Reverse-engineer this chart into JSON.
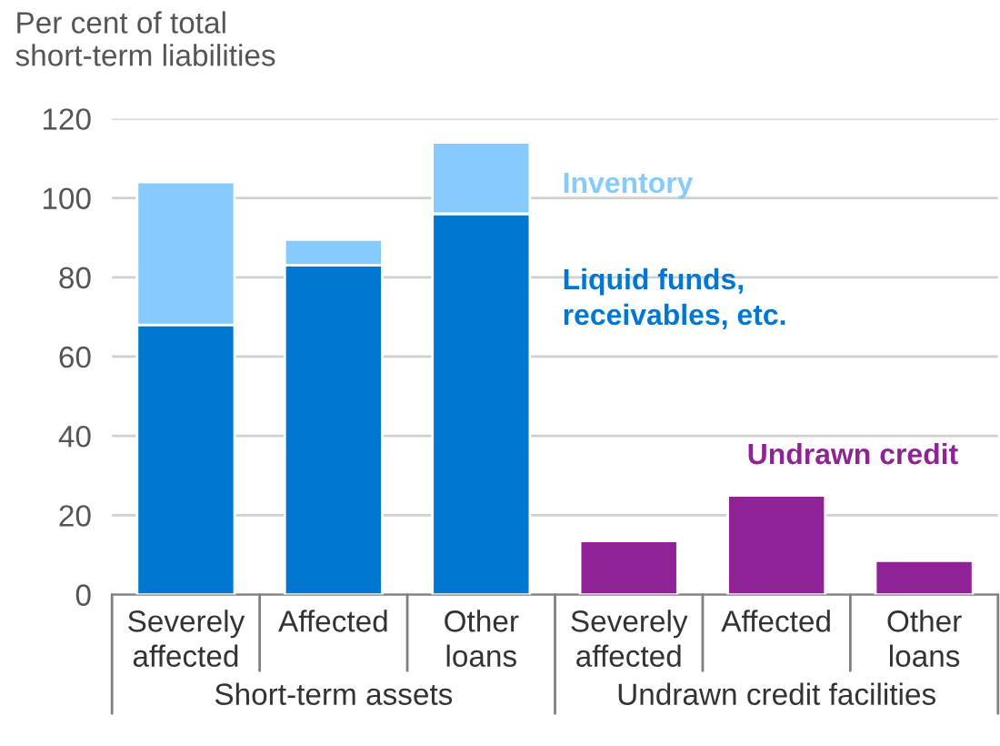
{
  "chart_data": {
    "type": "bar",
    "stacked": true,
    "ylabel": "Per cent of total\nshort-term liabilities",
    "categories": [
      "Severely\naffected",
      "Affected",
      "Other\nloans",
      "Severely\naffected",
      "Affected",
      "Other\nloans"
    ],
    "series": [
      {
        "name": "Liquid funds,\nreceivables, etc.",
        "color": "#0078d2",
        "values": [
          68,
          83,
          96,
          null,
          null,
          null
        ]
      },
      {
        "name": "Inventory",
        "color": "#87cafe",
        "values": [
          36,
          6.5,
          18,
          null,
          null,
          null
        ]
      },
      {
        "name": "Undrawn credit",
        "color": "#8e2296",
        "values": [
          null,
          null,
          null,
          13.5,
          25,
          8.5
        ]
      }
    ],
    "ylim": [
      0,
      120
    ],
    "yticks": [
      0,
      20,
      40,
      60,
      80,
      100,
      120
    ],
    "grid": "y",
    "legend": false,
    "annotations": [
      "Short-term assets",
      "Undrawn credit facilities"
    ]
  }
}
